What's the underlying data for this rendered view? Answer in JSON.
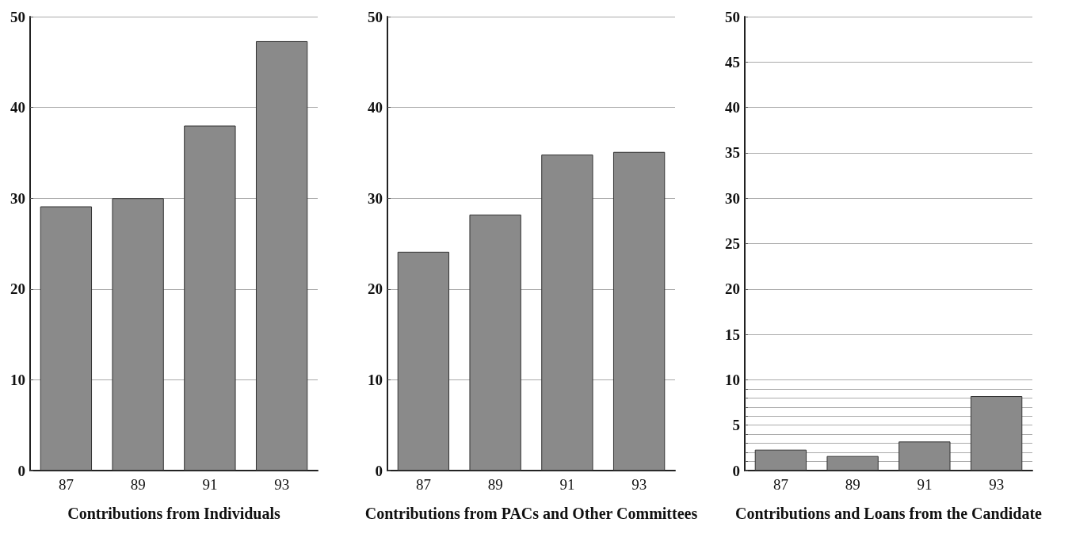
{
  "chart_data": [
    {
      "type": "bar",
      "xlabel": "Contributions from Individuals",
      "categories": [
        "87",
        "89",
        "91",
        "93"
      ],
      "values": [
        29.1,
        30,
        38,
        47.3
      ],
      "color": "#8a8a8a",
      "ylim": [
        0,
        50
      ],
      "yticks": [
        0,
        10,
        20,
        30,
        40,
        50
      ],
      "grid": "y"
    },
    {
      "type": "bar",
      "xlabel": "Contributions from PACs and Other Committees",
      "categories": [
        "87",
        "89",
        "91",
        "93"
      ],
      "values": [
        24.1,
        28.2,
        34.8,
        35.1
      ],
      "color": "#8a8a8a",
      "ylim": [
        0,
        50
      ],
      "yticks": [
        0,
        10,
        20,
        30,
        40,
        50
      ],
      "grid": "y"
    },
    {
      "type": "bar",
      "xlabel": "Contributions and Loans from the Candidate",
      "categories": [
        "87",
        "89",
        "91",
        "93"
      ],
      "values": [
        2.3,
        1.6,
        3.2,
        8.2
      ],
      "color": "#8a8a8a",
      "ylim": [
        0,
        50
      ],
      "yticks": [
        0,
        {
          "value": 1,
          "label": null
        },
        {
          "value": 2,
          "label": null
        },
        {
          "value": 3,
          "label": null
        },
        {
          "value": 4,
          "label": null
        },
        5,
        {
          "value": 6,
          "label": null
        },
        {
          "value": 7,
          "label": null
        },
        {
          "value": 8,
          "label": null
        },
        {
          "value": 9,
          "label": null
        },
        10,
        15,
        20,
        25,
        30,
        35,
        40,
        45,
        50
      ],
      "grid": "y"
    }
  ]
}
